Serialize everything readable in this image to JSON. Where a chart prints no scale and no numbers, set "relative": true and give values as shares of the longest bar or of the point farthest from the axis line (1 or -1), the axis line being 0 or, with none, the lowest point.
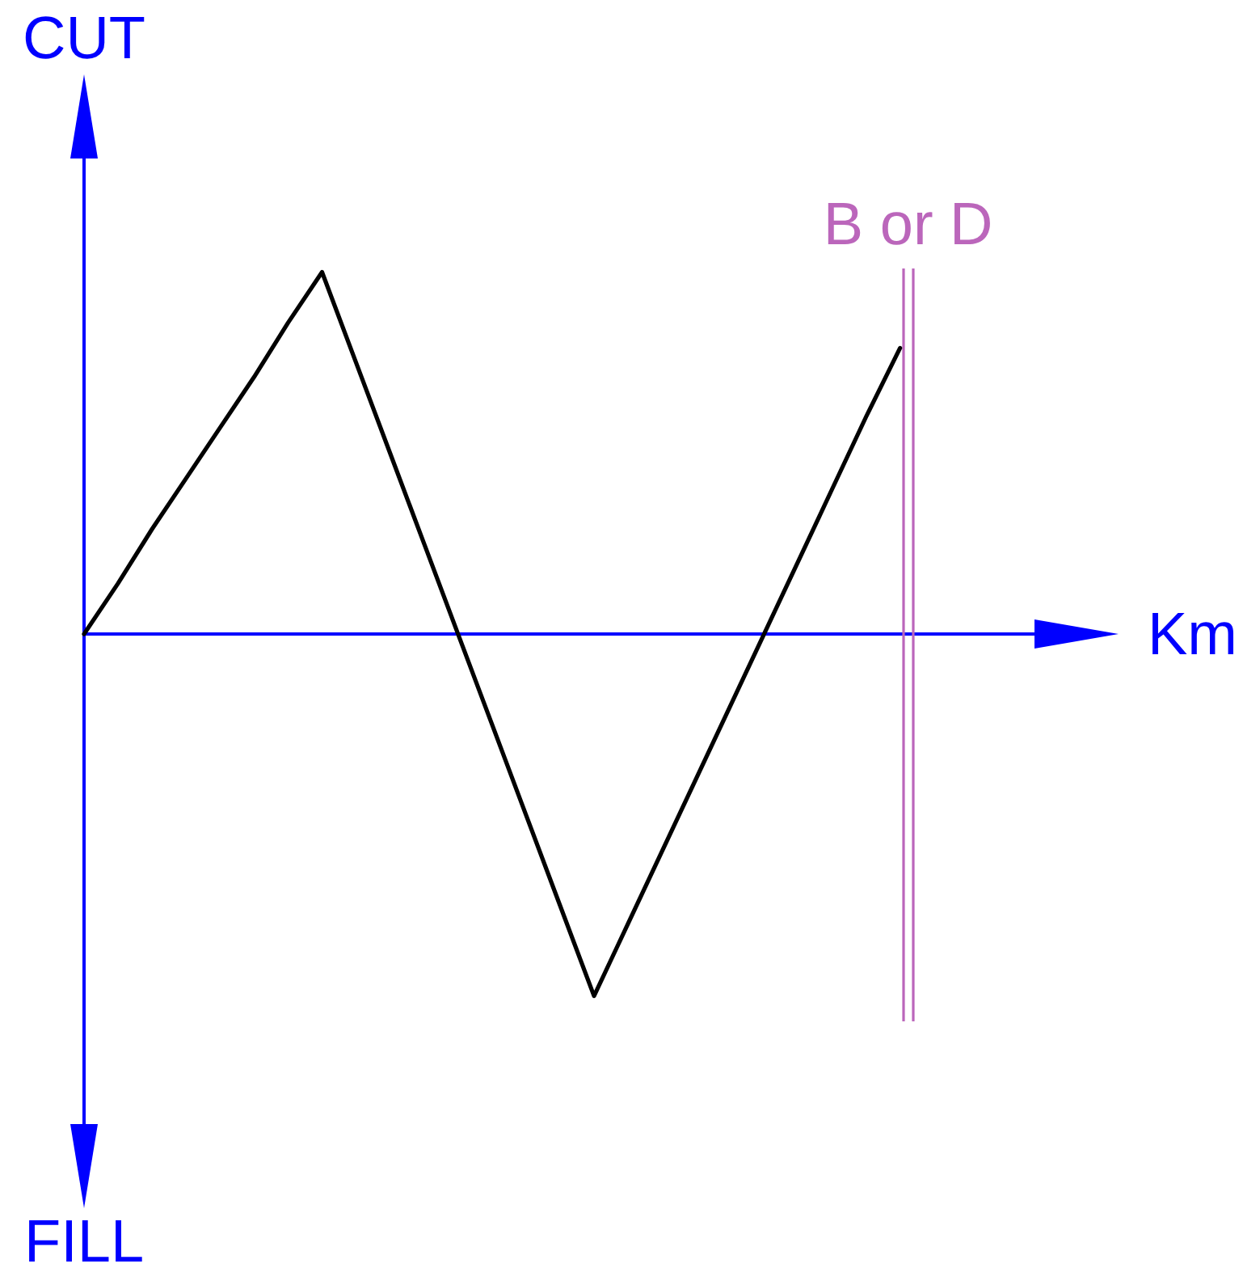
{
  "chart_data": {
    "type": "line",
    "xlabel": "Km",
    "ylabel": "CUT",
    "annotations": [
      "FILL"
    ],
    "relative": true,
    "categories": [
      null,
      null,
      null,
      null,
      null,
      null,
      null,
      null,
      null,
      null,
      null,
      null,
      null,
      null,
      null,
      null,
      null,
      null,
      null,
      null,
      null,
      null,
      null,
      null,
      null,
      null,
      null,
      null,
      null,
      null
    ],
    "series": [
      {
        "color": "#000000",
        "values": [
          0,
          0.14,
          0.29,
          0.43,
          0.57,
          0.71,
          0.86,
          1,
          0.75,
          0.5,
          0.25,
          0,
          -0.25,
          -0.5,
          -0.75,
          -1,
          -0.8,
          -0.6,
          -0.4,
          -0.2,
          0,
          0.2,
          0.4,
          0.6,
          0.79,
          null,
          null,
          null,
          null,
          null
        ]
      }
    ],
    "ref_lines": [
      {
        "axis": "y",
        "value": 0,
        "color": "#0000ff"
      },
      {
        "axis": "x",
        "label": "B or D",
        "color": "#bb66bb"
      }
    ],
    "grid": false,
    "marker": "none",
    "line_style": "solid"
  }
}
